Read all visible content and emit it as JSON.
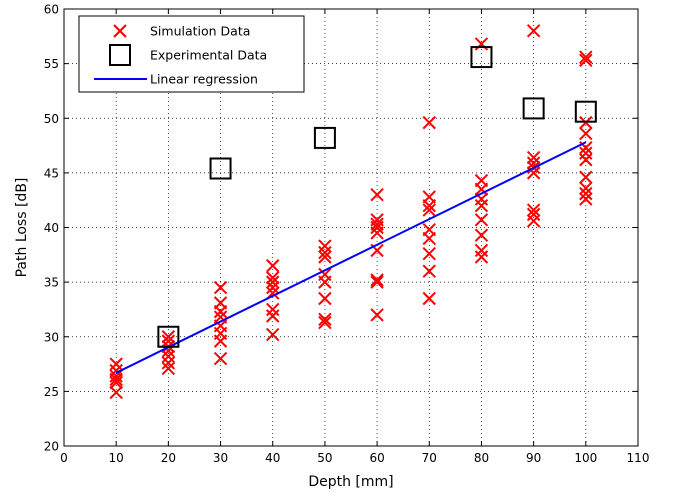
{
  "chart_data": {
    "type": "scatter",
    "title": "",
    "xlabel": "Depth [mm]",
    "ylabel": "Path Loss [dB]",
    "xlim": [
      0,
      110
    ],
    "ylim": [
      20,
      60
    ],
    "xticks": [
      0,
      10,
      20,
      30,
      40,
      50,
      60,
      70,
      80,
      90,
      100,
      110
    ],
    "yticks": [
      20,
      25,
      30,
      35,
      40,
      45,
      50,
      55,
      60
    ],
    "grid": true,
    "legend_position": "top-left",
    "series": [
      {
        "name": "Simulation Data",
        "kind": "scatter",
        "marker": "x",
        "color": "#ff0000",
        "points": [
          [
            10,
            24.9
          ],
          [
            10,
            25.8
          ],
          [
            10,
            26.1
          ],
          [
            10,
            26.4
          ],
          [
            10,
            26.9
          ],
          [
            10,
            27.5
          ],
          [
            20,
            27.1
          ],
          [
            20,
            27.6
          ],
          [
            20,
            28.2
          ],
          [
            20,
            28.7
          ],
          [
            20,
            29.1
          ],
          [
            20,
            29.6
          ],
          [
            20,
            30.0
          ],
          [
            30,
            28.0
          ],
          [
            30,
            29.6
          ],
          [
            30,
            30.3
          ],
          [
            30,
            31.0
          ],
          [
            30,
            31.8
          ],
          [
            30,
            32.3
          ],
          [
            30,
            33.1
          ],
          [
            30,
            34.5
          ],
          [
            40,
            30.2
          ],
          [
            40,
            31.9
          ],
          [
            40,
            32.5
          ],
          [
            40,
            34.0
          ],
          [
            40,
            34.5
          ],
          [
            40,
            35.0
          ],
          [
            40,
            35.4
          ],
          [
            40,
            36.5
          ],
          [
            50,
            31.3
          ],
          [
            50,
            31.6
          ],
          [
            50,
            33.5
          ],
          [
            50,
            35.0
          ],
          [
            50,
            35.7
          ],
          [
            50,
            37.3
          ],
          [
            50,
            37.7
          ],
          [
            50,
            38.3
          ],
          [
            60,
            32.0
          ],
          [
            60,
            35.0
          ],
          [
            60,
            35.2
          ],
          [
            60,
            37.9
          ],
          [
            60,
            39.5
          ],
          [
            60,
            40.0
          ],
          [
            60,
            40.3
          ],
          [
            60,
            40.7
          ],
          [
            60,
            43.0
          ],
          [
            70,
            33.5
          ],
          [
            70,
            36.0
          ],
          [
            70,
            37.6
          ],
          [
            70,
            39.0
          ],
          [
            70,
            39.8
          ],
          [
            70,
            41.6
          ],
          [
            70,
            42.0
          ],
          [
            70,
            42.8
          ],
          [
            70,
            49.6
          ],
          [
            80,
            37.3
          ],
          [
            80,
            37.9
          ],
          [
            80,
            39.3
          ],
          [
            80,
            40.7
          ],
          [
            80,
            42.0
          ],
          [
            80,
            42.6
          ],
          [
            80,
            43.5
          ],
          [
            80,
            44.3
          ],
          [
            80,
            56.8
          ],
          [
            90,
            40.6
          ],
          [
            90,
            41.2
          ],
          [
            90,
            41.6
          ],
          [
            90,
            45.0
          ],
          [
            90,
            45.5
          ],
          [
            90,
            45.9
          ],
          [
            90,
            46.4
          ],
          [
            90,
            58.0
          ],
          [
            100,
            42.6
          ],
          [
            100,
            43.1
          ],
          [
            100,
            43.6
          ],
          [
            100,
            44.6
          ],
          [
            100,
            46.2
          ],
          [
            100,
            46.8
          ],
          [
            100,
            47.3
          ],
          [
            100,
            48.6
          ],
          [
            100,
            49.6
          ],
          [
            100,
            55.3
          ],
          [
            100,
            55.6
          ]
        ]
      },
      {
        "name": "Experimental Data",
        "kind": "scatter",
        "marker": "square",
        "color": "#000000",
        "points": [
          [
            20,
            30.0
          ],
          [
            30,
            45.4
          ],
          [
            50,
            48.2
          ],
          [
            80,
            55.6
          ],
          [
            90,
            50.9
          ],
          [
            100,
            50.6
          ]
        ]
      },
      {
        "name": "Linear regression",
        "kind": "line",
        "color": "#0000ff",
        "points": [
          [
            10,
            26.7
          ],
          [
            100,
            47.8
          ]
        ]
      }
    ]
  }
}
